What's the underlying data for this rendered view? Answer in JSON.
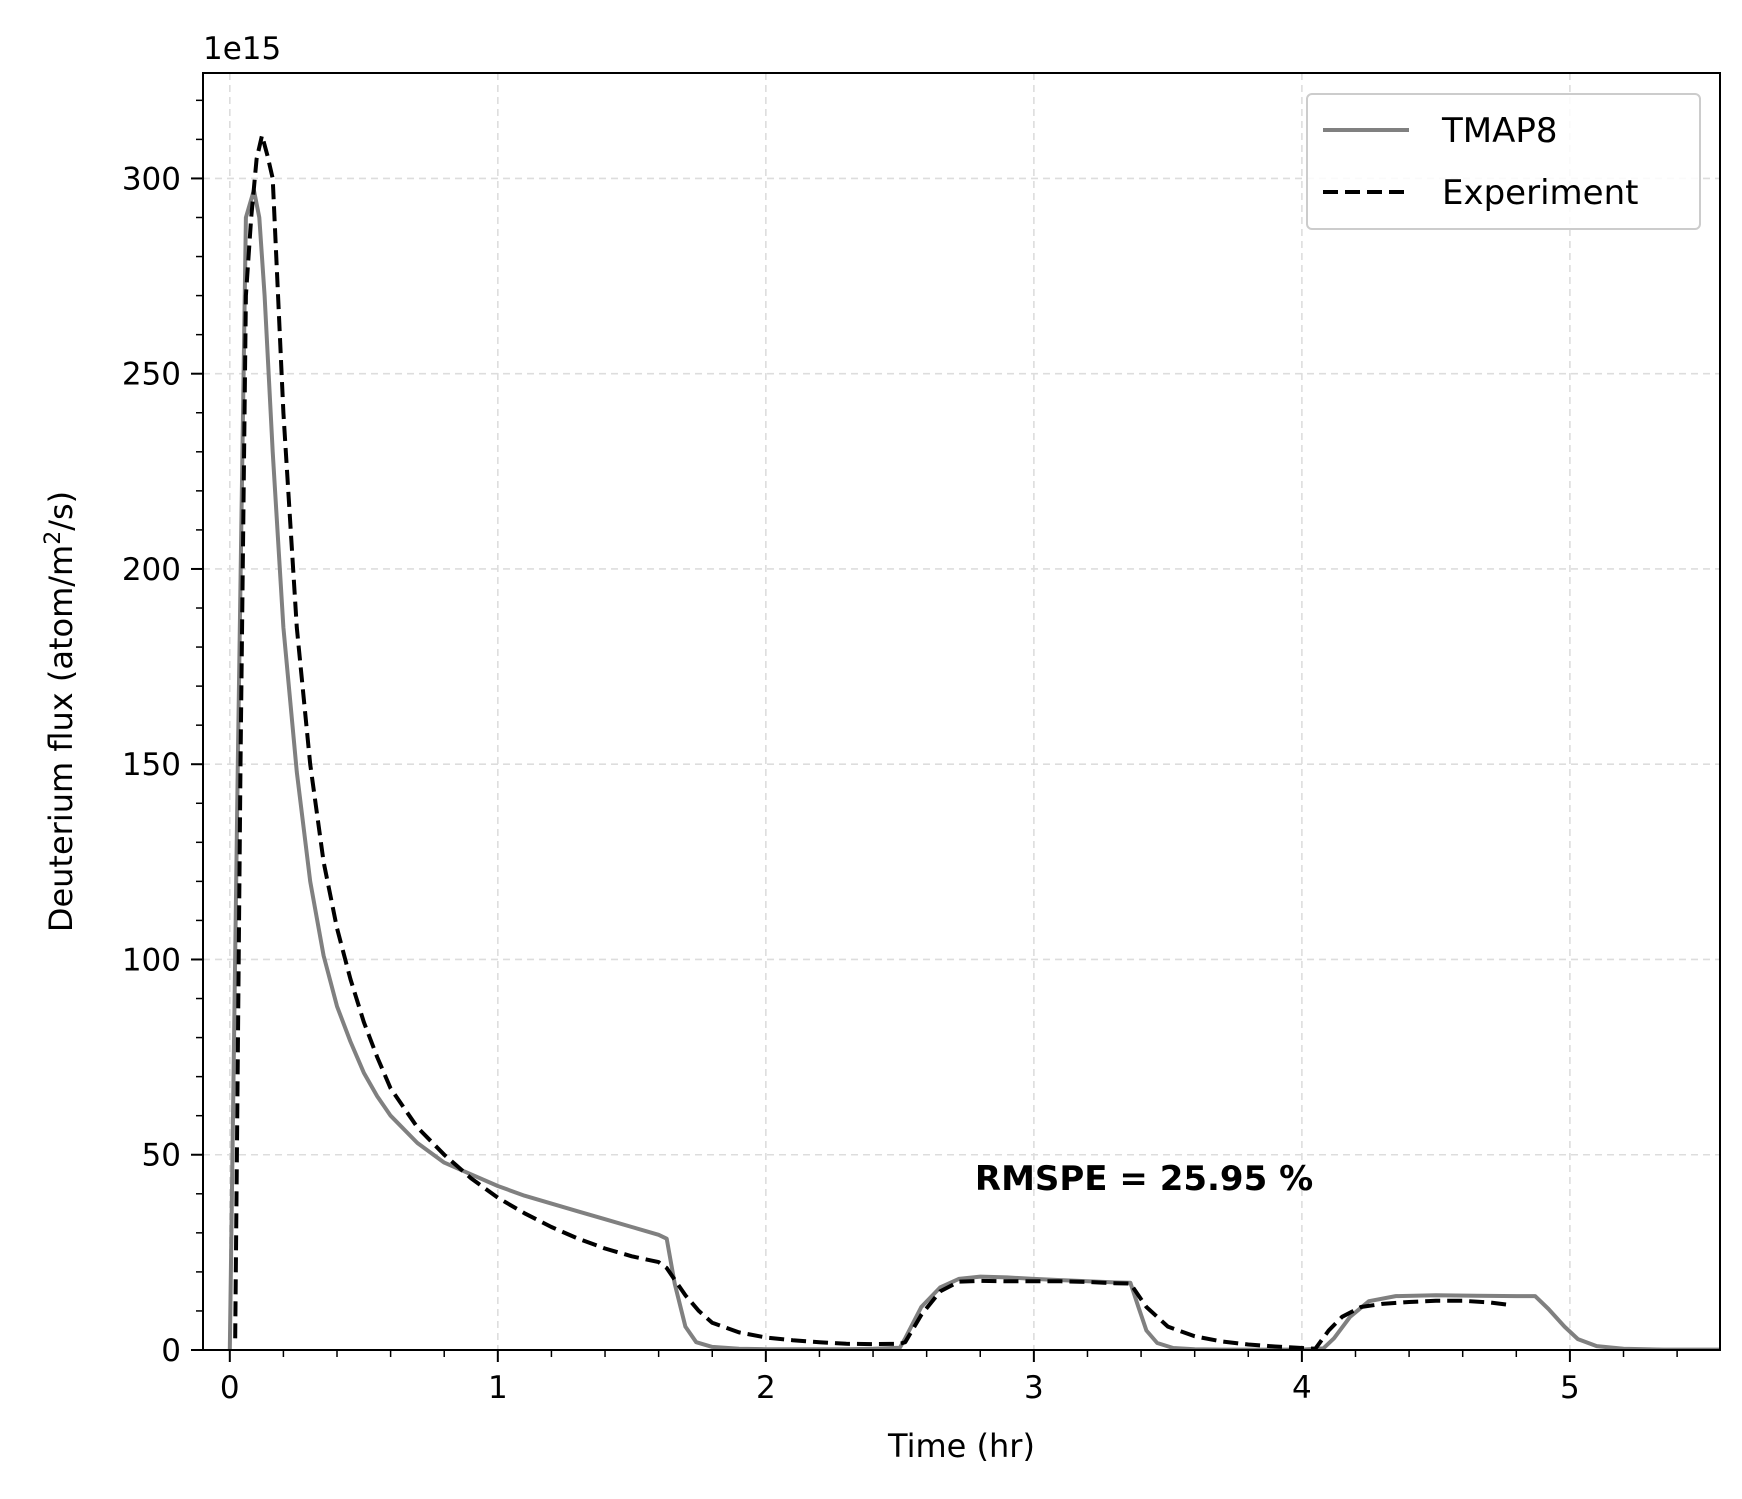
{
  "chart_data": {
    "type": "line",
    "xlabel": "Time (hr)",
    "ylabel_main": "Deuterium flux (atom/m",
    "ylabel_sup": "2",
    "ylabel_tail": "/s)",
    "offset_text": "1e15",
    "xlim": [
      -0.1,
      5.56
    ],
    "ylim": [
      0,
      327
    ],
    "x_ticks": [
      0,
      1,
      2,
      3,
      4,
      5
    ],
    "x_tick_labels": [
      "0",
      "1",
      "2",
      "3",
      "4",
      "5"
    ],
    "y_ticks": [
      0,
      50,
      100,
      150,
      200,
      250,
      300
    ],
    "y_tick_labels": [
      "0",
      "50",
      "100",
      "150",
      "200",
      "250",
      "300"
    ],
    "grid": true,
    "legend_position": "top-right",
    "annotation": "RMSPE = 25.95 %",
    "series": [
      {
        "name": "TMAP8",
        "color": "#808080",
        "style": "solid",
        "x": [
          0.0,
          0.03,
          0.06,
          0.09,
          0.11,
          0.13,
          0.16,
          0.2,
          0.25,
          0.3,
          0.35,
          0.4,
          0.45,
          0.5,
          0.55,
          0.6,
          0.7,
          0.8,
          0.9,
          1.0,
          1.1,
          1.2,
          1.3,
          1.4,
          1.5,
          1.6,
          1.63,
          1.66,
          1.7,
          1.74,
          1.8,
          1.9,
          2.0,
          2.1,
          2.2,
          2.3,
          2.4,
          2.5,
          2.52,
          2.58,
          2.65,
          2.72,
          2.8,
          2.9,
          3.0,
          3.1,
          3.2,
          3.3,
          3.36,
          3.39,
          3.42,
          3.46,
          3.52,
          3.6,
          3.7,
          3.8,
          3.9,
          4.0,
          4.08,
          4.12,
          4.18,
          4.25,
          4.35,
          4.5,
          4.65,
          4.8,
          4.87,
          4.92,
          4.98,
          5.03,
          5.1,
          5.2,
          5.35,
          5.56
        ],
        "y": [
          0,
          150,
          290,
          297,
          290,
          270,
          230,
          185,
          148,
          120,
          101,
          88,
          79,
          71,
          65,
          60,
          53,
          48,
          45,
          42,
          39.5,
          37.5,
          35.5,
          33.5,
          31.5,
          29.5,
          28.5,
          17,
          6,
          2,
          0.8,
          0.3,
          0.2,
          0.2,
          0.2,
          0.2,
          0.3,
          0.6,
          3,
          11,
          16,
          18.2,
          18.8,
          18.6,
          18.2,
          17.9,
          17.6,
          17.3,
          17.2,
          11,
          5,
          1.8,
          0.5,
          0.2,
          0.1,
          0.1,
          0.1,
          0.1,
          0.4,
          3,
          8.5,
          12.5,
          13.8,
          14.0,
          13.9,
          13.8,
          13.8,
          10.5,
          6,
          2.8,
          1.0,
          0.3,
          0.1,
          0.1
        ]
      },
      {
        "name": "Experiment",
        "color": "#000000",
        "style": "dashed",
        "x": [
          0.02,
          0.04,
          0.06,
          0.08,
          0.1,
          0.12,
          0.14,
          0.16,
          0.2,
          0.25,
          0.3,
          0.35,
          0.4,
          0.45,
          0.5,
          0.55,
          0.6,
          0.7,
          0.8,
          0.9,
          1.0,
          1.1,
          1.2,
          1.3,
          1.4,
          1.5,
          1.6,
          1.63,
          1.66,
          1.7,
          1.75,
          1.8,
          1.9,
          2.0,
          2.1,
          2.2,
          2.3,
          2.4,
          2.5,
          2.52,
          2.58,
          2.65,
          2.72,
          2.8,
          2.9,
          3.0,
          3.1,
          3.2,
          3.3,
          3.36,
          3.42,
          3.5,
          3.6,
          3.7,
          3.8,
          3.9,
          4.0,
          4.05,
          4.1,
          4.15,
          4.22,
          4.3,
          4.4,
          4.5,
          4.6,
          4.7,
          4.78
        ],
        "y": [
          3,
          150,
          270,
          290,
          305,
          311,
          306,
          300,
          240,
          185,
          150,
          125,
          108,
          95,
          84,
          75,
          67,
          57,
          50,
          44,
          39,
          35,
          31.5,
          28.5,
          26,
          24,
          22.5,
          21,
          18,
          14,
          10,
          7,
          4.5,
          3.2,
          2.5,
          2.0,
          1.6,
          1.5,
          1.6,
          2,
          9,
          15,
          17.5,
          17.7,
          17.6,
          17.6,
          17.6,
          17.4,
          17.1,
          17,
          11,
          6,
          3.5,
          2.2,
          1.4,
          0.9,
          0.5,
          0.3,
          5,
          8.5,
          11,
          11.8,
          12.3,
          12.6,
          12.6,
          12.2,
          11.5
        ]
      }
    ]
  }
}
